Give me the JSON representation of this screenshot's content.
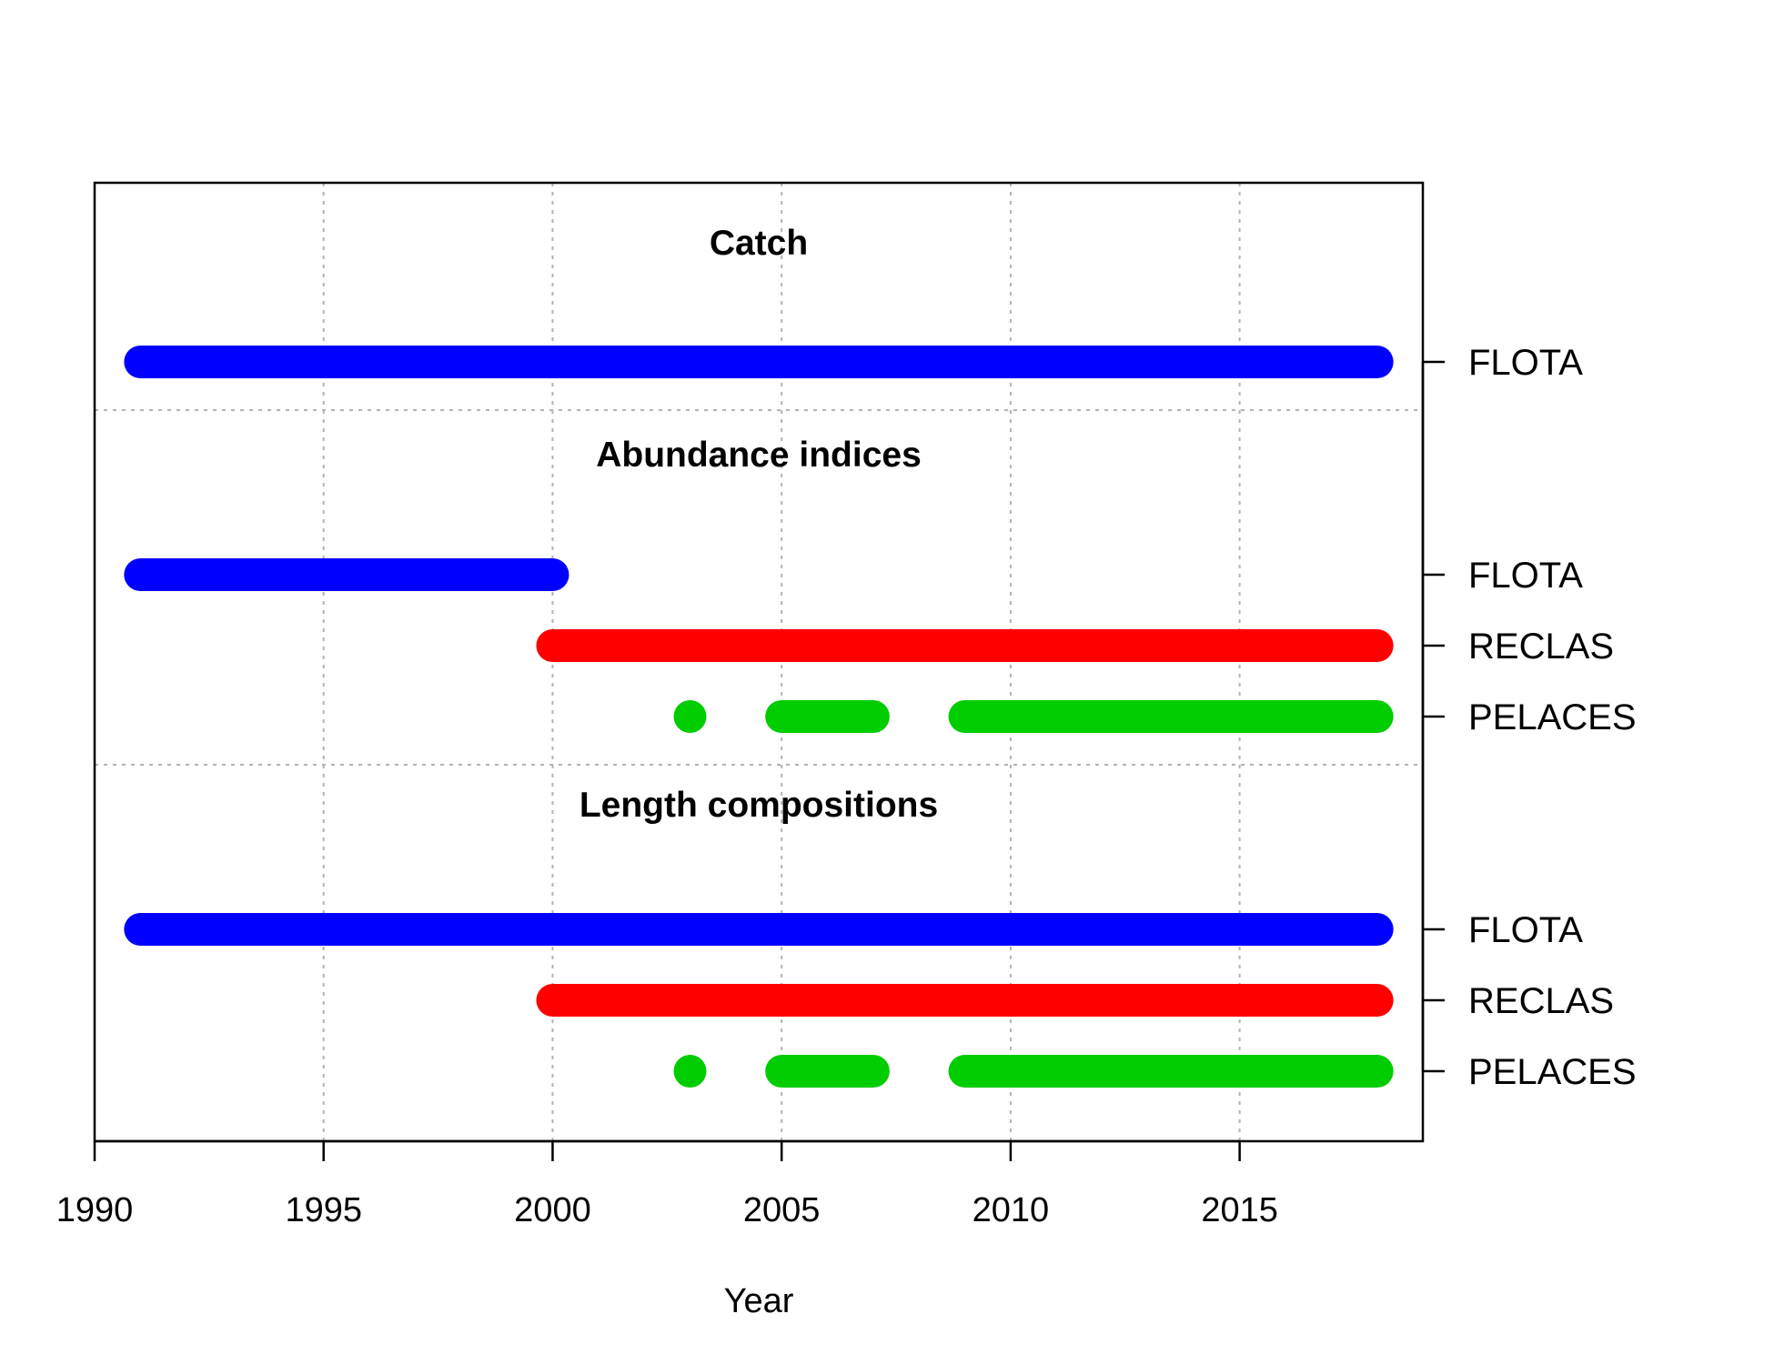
{
  "chart_data": {
    "type": "timeline",
    "xlabel": "Year",
    "xlim": [
      1990,
      2019
    ],
    "xticks": [
      "1990",
      "1995",
      "2000",
      "2005",
      "2010",
      "2015"
    ],
    "grid": true,
    "colors": {
      "FLOTA": "#0000ff",
      "RECLAS": "#ff0000",
      "PELACES": "#00cd00"
    },
    "sections": [
      {
        "title": "Catch",
        "rows": [
          {
            "label": "FLOTA",
            "series": "FLOTA",
            "segments": [
              [
                1991,
                2018
              ]
            ]
          }
        ]
      },
      {
        "title": "Abundance indices",
        "rows": [
          {
            "label": "FLOTA",
            "series": "FLOTA",
            "segments": [
              [
                1991,
                2000
              ]
            ]
          },
          {
            "label": "RECLAS",
            "series": "RECLAS",
            "segments": [
              [
                2000,
                2018
              ]
            ]
          },
          {
            "label": "PELACES",
            "series": "PELACES",
            "segments": [
              [
                2003,
                2003
              ],
              [
                2005,
                2007
              ],
              [
                2009,
                2018
              ]
            ]
          }
        ]
      },
      {
        "title": "Length compositions",
        "rows": [
          {
            "label": "FLOTA",
            "series": "FLOTA",
            "segments": [
              [
                1991,
                2018
              ]
            ]
          },
          {
            "label": "RECLAS",
            "series": "RECLAS",
            "segments": [
              [
                2000,
                2018
              ]
            ]
          },
          {
            "label": "PELACES",
            "series": "PELACES",
            "segments": [
              [
                2003,
                2003
              ],
              [
                2005,
                2007
              ],
              [
                2009,
                2018
              ]
            ]
          }
        ]
      }
    ]
  }
}
